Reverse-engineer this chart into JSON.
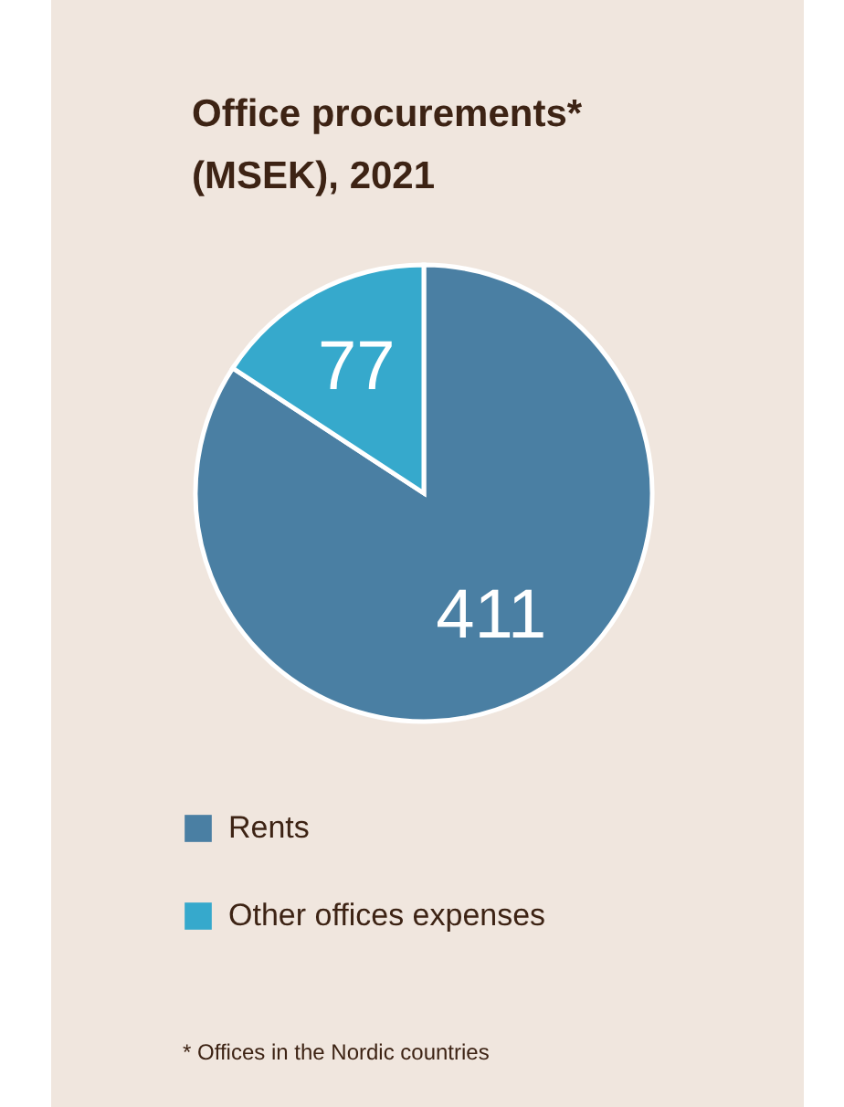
{
  "chart_data": {
    "type": "pie",
    "title": "Office procurements*\n(MSEK), 2021",
    "categories": [
      "Rents",
      "Other offices expenses"
    ],
    "values": [
      411,
      77
    ],
    "colors": [
      "#4a7fa3",
      "#36a9cc"
    ],
    "data_labels": true,
    "legend": "bottom",
    "annotations": [
      "* Offices in the Nordic countries"
    ]
  }
}
